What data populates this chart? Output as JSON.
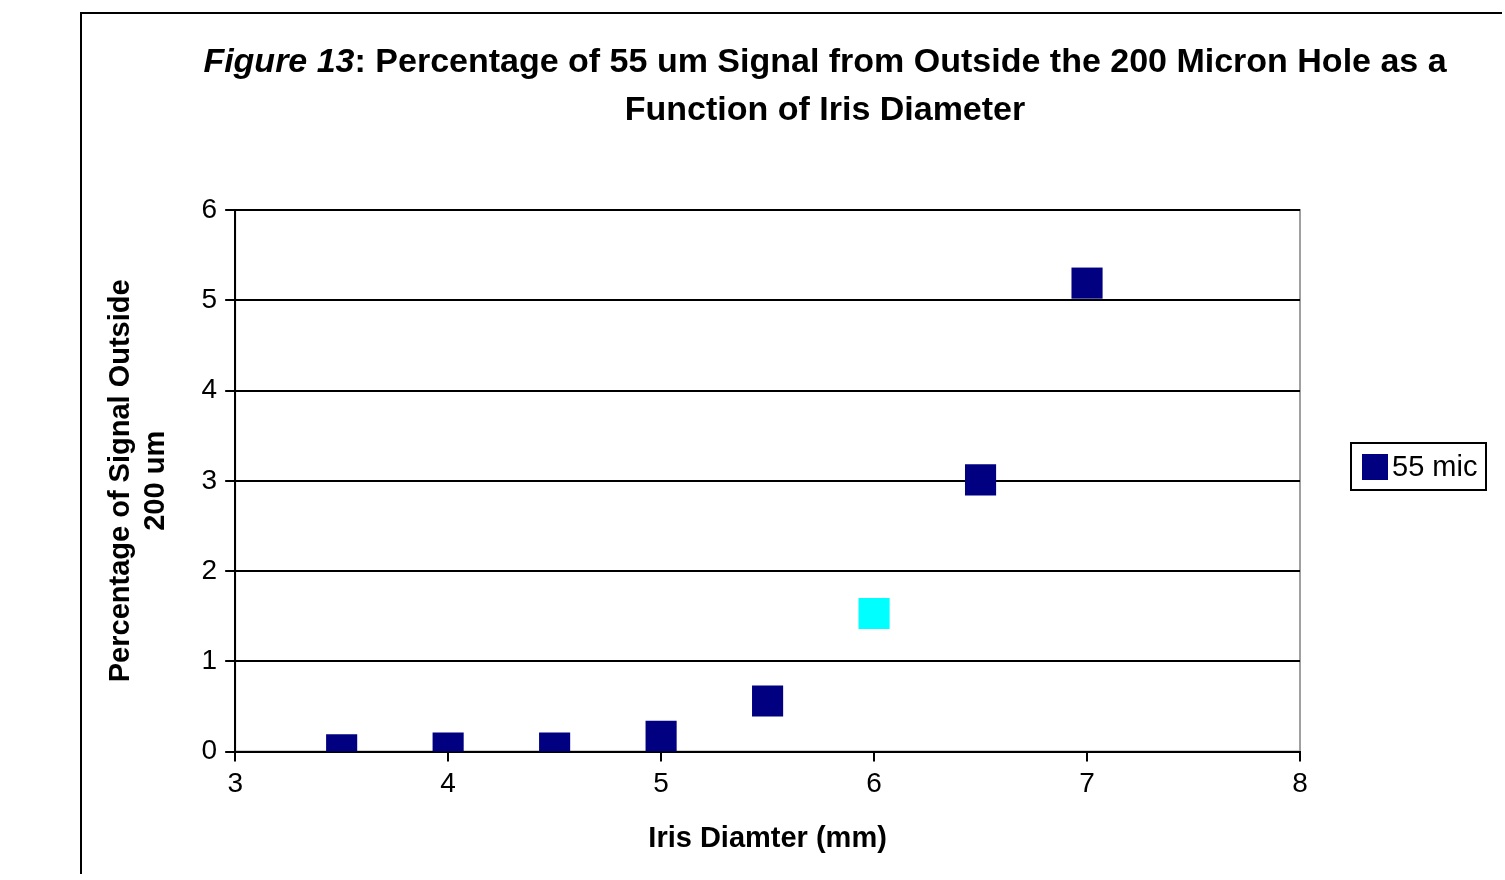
{
  "chart_data": {
    "type": "scatter",
    "title": "Figure 13: Percentage of 55 um Signal from Outside the 200 Micron Hole as a Function of Iris Diameter",
    "xlabel": "Iris Diamter (mm)",
    "ylabel": "Percentage of Signal Outside\n200 um",
    "x": [
      3.5,
      4,
      4.5,
      5,
      5.5,
      6,
      6.5,
      7
    ],
    "series": [
      {
        "name": "55 mic",
        "color": "#000080",
        "values": [
          0.02,
          0.04,
          0.04,
          0.17,
          0.56,
          1.53,
          3.01,
          5.19
        ],
        "colors": [
          "#000080",
          "#000080",
          "#000080",
          "#000080",
          "#000080",
          "#00ffff",
          "#000080",
          "#000080"
        ]
      }
    ],
    "xlim": [
      3,
      8
    ],
    "xticks": [
      3,
      4,
      5,
      6,
      7,
      8
    ],
    "ylim": [
      0,
      6
    ],
    "yticks": [
      0,
      1,
      2,
      3,
      4,
      5,
      6
    ],
    "grid": "y",
    "legend": "right",
    "marker": "square"
  }
}
